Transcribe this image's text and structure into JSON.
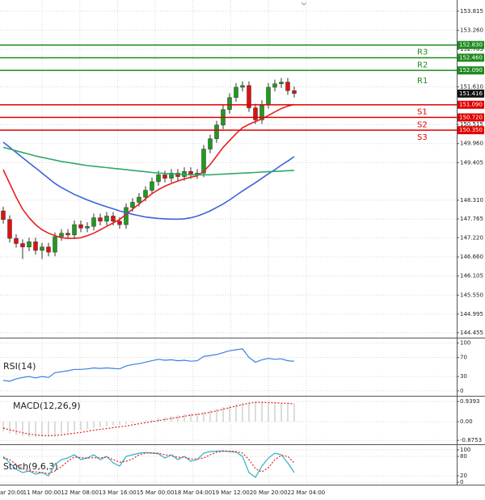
{
  "chart_data": [
    {
      "type": "candlestick",
      "open": [
        148.0,
        147.75,
        147.2,
        147.05,
        146.95,
        147.1,
        146.85,
        146.95,
        146.8,
        147.25,
        147.35,
        147.3,
        147.6,
        147.5,
        147.55,
        147.8,
        147.7,
        147.85,
        147.7,
        147.6,
        148.1,
        148.25,
        148.4,
        148.6,
        148.85,
        149.05,
        148.95,
        149.1,
        149.0,
        149.15,
        149.05,
        149.1,
        149.8,
        150.1,
        150.5,
        150.95,
        151.3,
        151.6,
        151.65,
        151.0,
        150.65,
        151.1,
        151.6,
        151.7,
        151.75,
        151.5
      ],
      "high": [
        148.12,
        147.87,
        147.32,
        147.17,
        147.22,
        147.22,
        147.07,
        147.07,
        147.37,
        147.47,
        147.47,
        147.72,
        147.72,
        147.67,
        147.92,
        147.92,
        147.97,
        147.97,
        147.82,
        148.22,
        148.37,
        148.52,
        148.72,
        148.97,
        149.17,
        149.17,
        149.22,
        149.22,
        149.27,
        149.27,
        149.22,
        149.92,
        150.22,
        150.62,
        151.07,
        151.42,
        151.72,
        151.77,
        151.77,
        151.12,
        151.22,
        151.72,
        151.82,
        151.87,
        151.87,
        151.62
      ],
      "low": [
        147.63,
        147.08,
        146.93,
        146.6,
        146.83,
        146.73,
        146.6,
        146.68,
        146.68,
        147.13,
        147.18,
        147.18,
        147.38,
        147.38,
        147.43,
        147.58,
        147.58,
        147.58,
        147.48,
        147.48,
        147.98,
        148.13,
        148.28,
        148.48,
        148.73,
        148.83,
        148.83,
        148.88,
        148.88,
        148.93,
        148.93,
        148.98,
        149.68,
        149.98,
        150.38,
        150.83,
        151.18,
        151.48,
        150.88,
        150.53,
        150.53,
        150.98,
        151.48,
        151.58,
        151.38,
        151.3
      ],
      "close": [
        147.75,
        147.2,
        147.05,
        146.95,
        147.1,
        146.85,
        146.95,
        146.8,
        147.25,
        147.35,
        147.3,
        147.6,
        147.5,
        147.55,
        147.8,
        147.7,
        147.85,
        147.7,
        147.6,
        148.1,
        148.25,
        148.4,
        148.6,
        148.85,
        149.05,
        148.95,
        149.1,
        149.0,
        149.15,
        149.05,
        149.1,
        149.8,
        150.1,
        150.5,
        150.95,
        151.3,
        151.6,
        151.65,
        151.0,
        150.65,
        151.1,
        151.6,
        151.7,
        151.75,
        151.5,
        151.42
      ],
      "up_color": "#1f9a1f",
      "down_color": "#e01010",
      "overlays": [
        {
          "color": "#e82020",
          "values": [
            149.2,
            148.8,
            148.4,
            148.05,
            147.8,
            147.6,
            147.45,
            147.35,
            147.28,
            147.22,
            147.2,
            147.2,
            147.22,
            147.28,
            147.35,
            147.45,
            147.55,
            147.65,
            147.75,
            147.9,
            148.05,
            148.2,
            148.35,
            148.5,
            148.62,
            148.72,
            148.8,
            148.87,
            148.93,
            148.98,
            149.02,
            149.15,
            149.35,
            149.6,
            149.85,
            150.05,
            150.25,
            150.42,
            150.52,
            150.6,
            150.68,
            150.78,
            150.88,
            150.98,
            151.05,
            151.1
          ]
        },
        {
          "color": "#3a64d8",
          "values": [
            150.0,
            149.85,
            149.7,
            149.55,
            149.4,
            149.25,
            149.1,
            148.95,
            148.8,
            148.68,
            148.58,
            148.48,
            148.4,
            148.32,
            148.25,
            148.18,
            148.12,
            148.06,
            148.0,
            147.95,
            147.9,
            147.86,
            147.82,
            147.8,
            147.78,
            147.77,
            147.76,
            147.76,
            147.77,
            147.8,
            147.85,
            147.92,
            148.0,
            148.1,
            148.2,
            148.32,
            148.45,
            148.58,
            148.7,
            148.82,
            148.95,
            149.08,
            149.2,
            149.33,
            149.45,
            149.58
          ]
        },
        {
          "color": "#2ea86a",
          "values": [
            149.85,
            149.8,
            149.75,
            149.7,
            149.65,
            149.6,
            149.56,
            149.52,
            149.48,
            149.44,
            149.41,
            149.38,
            149.35,
            149.32,
            149.3,
            149.28,
            149.26,
            149.24,
            149.22,
            149.2,
            149.18,
            149.16,
            149.14,
            149.12,
            149.1,
            149.09,
            149.08,
            149.07,
            149.06,
            149.05,
            149.05,
            149.05,
            149.05,
            149.06,
            149.07,
            149.08,
            149.09,
            149.1,
            149.11,
            149.12,
            149.13,
            149.14,
            149.15,
            149.16,
            149.17,
            149.18
          ]
        }
      ],
      "levels": [
        {
          "name": "R3",
          "value": 152.83,
          "label": "152.830",
          "color": "#1e8a1e"
        },
        {
          "name": "R2",
          "value": 152.46,
          "label": "152.460",
          "color": "#1e8a1e"
        },
        {
          "name": "R1",
          "value": 152.09,
          "label": "152.090",
          "color": "#1e8a1e"
        },
        {
          "name": "S1",
          "value": 151.09,
          "label": "151.090",
          "color": "#e00000"
        },
        {
          "name": "S2",
          "value": 150.72,
          "label": "150.720",
          "color": "#e00000"
        },
        {
          "name": "S3",
          "value": 150.35,
          "label": "150.350",
          "color": "#e00000"
        }
      ],
      "last": 151.416,
      "ylim": [
        144.31,
        154.14
      ],
      "yticks": [
        153.815,
        {
          "value": 153.26,
          "label": "153.260"
        },
        152.705,
        {
          "value": 151.61,
          "label": "151.610"
        },
        150.515,
        {
          "value": 149.96,
          "label": "149.960"
        },
        149.405,
        {
          "value": 148.31,
          "label": "148.310"
        },
        147.765,
        {
          "value": 147.22,
          "label": "147.220"
        },
        {
          "value": 146.66,
          "label": "146.660"
        },
        146.105,
        {
          "value": 145.55,
          "label": "145.550"
        },
        144.995,
        144.455
      ],
      "grid": true
    },
    {
      "type": "line",
      "title": "RSI(14)",
      "series": [
        {
          "color": "#3a7fe0",
          "values": [
            22,
            20,
            25,
            28,
            30,
            27,
            30,
            28,
            38,
            40,
            42,
            45,
            45,
            46,
            48,
            47,
            48,
            47,
            46,
            52,
            55,
            57,
            60,
            63,
            66,
            64,
            65,
            63,
            64,
            62,
            63,
            72,
            74,
            76,
            80,
            84,
            86,
            88,
            70,
            60,
            65,
            68,
            66,
            67,
            63,
            62
          ]
        }
      ],
      "ylim": [
        -7,
        108
      ],
      "yticks": [
        100,
        70,
        30,
        0
      ],
      "grid": true
    },
    {
      "type": "bar",
      "title": "MACD(12,26,9)",
      "series": [
        {
          "type": "bar",
          "color": "#b8b8b8",
          "values": [
            -0.45,
            -0.55,
            -0.62,
            -0.68,
            -0.72,
            -0.72,
            -0.7,
            -0.68,
            -0.62,
            -0.55,
            -0.5,
            -0.45,
            -0.4,
            -0.35,
            -0.3,
            -0.26,
            -0.22,
            -0.18,
            -0.15,
            -0.1,
            -0.05,
            0.0,
            0.05,
            0.1,
            0.15,
            0.2,
            0.25,
            0.3,
            0.35,
            0.38,
            0.4,
            0.45,
            0.52,
            0.6,
            0.68,
            0.75,
            0.82,
            0.88,
            0.9,
            0.9,
            0.88,
            0.87,
            0.86,
            0.85,
            0.83,
            0.8
          ]
        },
        {
          "type": "line",
          "dashed": true,
          "color": "#e02020",
          "values": [
            -0.3,
            -0.38,
            -0.45,
            -0.52,
            -0.58,
            -0.62,
            -0.65,
            -0.66,
            -0.65,
            -0.62,
            -0.58,
            -0.54,
            -0.5,
            -0.45,
            -0.4,
            -0.36,
            -0.32,
            -0.28,
            -0.24,
            -0.2,
            -0.15,
            -0.1,
            -0.05,
            0.0,
            0.05,
            0.1,
            0.15,
            0.2,
            0.25,
            0.3,
            0.34,
            0.38,
            0.44,
            0.5,
            0.58,
            0.65,
            0.72,
            0.8,
            0.86,
            0.9,
            0.9,
            0.89,
            0.88,
            0.86,
            0.85,
            0.83
          ]
        }
      ],
      "ylim": [
        -0.98,
        1.13
      ],
      "yticks": [
        0.9393,
        {
          "value": 0,
          "label": "0.00"
        },
        -0.8753
      ],
      "grid": true
    },
    {
      "type": "line",
      "title": "Stoch(9,6,3)",
      "series": [
        {
          "color": "#2fb0c8",
          "values": [
            80,
            60,
            40,
            30,
            35,
            25,
            30,
            20,
            55,
            70,
            75,
            85,
            70,
            75,
            85,
            70,
            80,
            60,
            50,
            80,
            85,
            90,
            92,
            90,
            88,
            75,
            85,
            70,
            80,
            65,
            70,
            90,
            95,
            96,
            97,
            95,
            93,
            80,
            30,
            15,
            50,
            75,
            90,
            85,
            60,
            30
          ]
        },
        {
          "color": "#e02020",
          "dashed": true,
          "values": [
            75,
            70,
            55,
            42,
            35,
            32,
            30,
            27,
            35,
            48,
            65,
            78,
            76,
            75,
            76,
            75,
            78,
            70,
            62,
            65,
            72,
            85,
            90,
            91,
            90,
            85,
            82,
            77,
            78,
            72,
            72,
            75,
            85,
            93,
            96,
            96,
            95,
            90,
            70,
            42,
            32,
            45,
            70,
            83,
            80,
            60
          ]
        }
      ],
      "ylim": [
        -7.5,
        112.5
      ],
      "yticks": [
        100,
        80,
        20,
        0
      ],
      "grid": true
    }
  ],
  "x_axis_labels": [
    "ar 20:00",
    "11 Mar 00:00",
    "12 Mar 08:00",
    "13 Mar 16:00",
    "15 Mar 00:00",
    "18 Mar 04:00",
    "19 Mar 12:00",
    "20 Mar 20:00",
    "22 Mar 04:00"
  ]
}
